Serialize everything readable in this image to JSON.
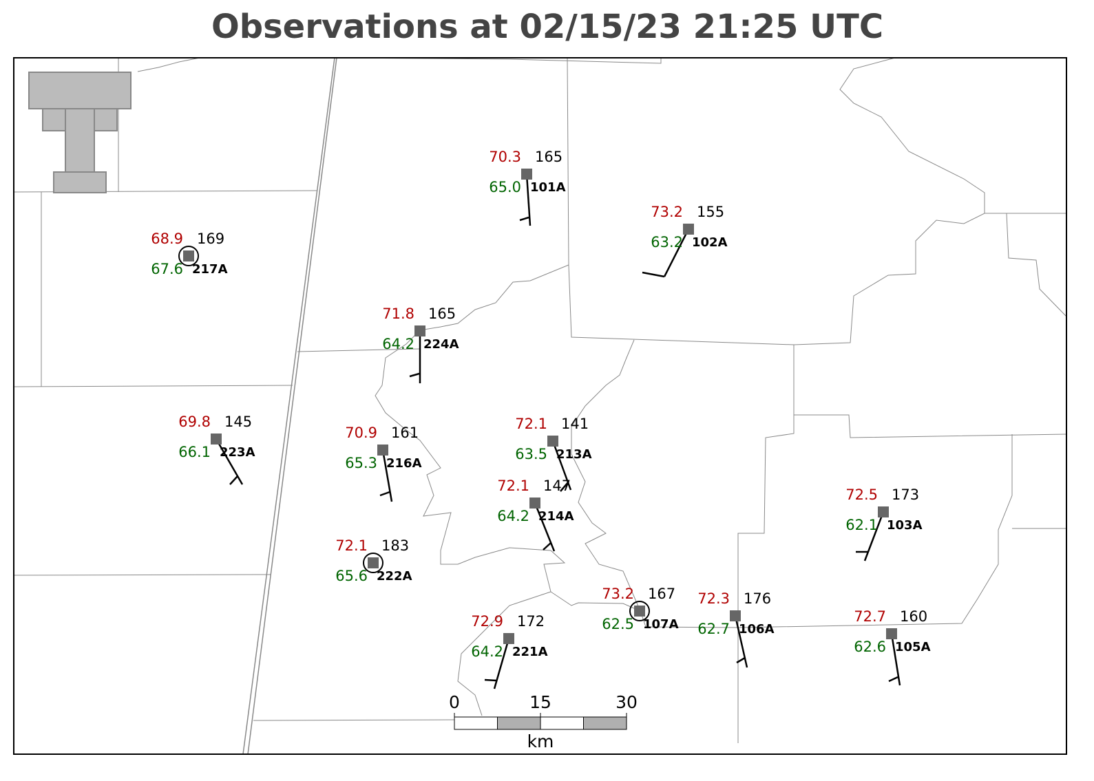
{
  "title": "Observations at 02/15/23 21:25 UTC",
  "stations": [
    {
      "id": "101A",
      "temperature": "70.3",
      "dewpoint": "65.0",
      "pressure": "165"
    },
    {
      "id": "102A",
      "temperature": "73.2",
      "dewpoint": "63.2",
      "pressure": "155"
    },
    {
      "id": "217A",
      "temperature": "68.9",
      "dewpoint": "67.6",
      "pressure": "169"
    },
    {
      "id": "224A",
      "temperature": "71.8",
      "dewpoint": "64.2",
      "pressure": "165"
    },
    {
      "id": "223A",
      "temperature": "69.8",
      "dewpoint": "66.1",
      "pressure": "145"
    },
    {
      "id": "216A",
      "temperature": "70.9",
      "dewpoint": "65.3",
      "pressure": "161"
    },
    {
      "id": "213A",
      "temperature": "72.1",
      "dewpoint": "63.5",
      "pressure": "141"
    },
    {
      "id": "214A",
      "temperature": "72.1",
      "dewpoint": "64.2",
      "pressure": "147"
    },
    {
      "id": "222A",
      "temperature": "72.1",
      "dewpoint": "65.6",
      "pressure": "183"
    },
    {
      "id": "221A",
      "temperature": "72.9",
      "dewpoint": "64.2",
      "pressure": "172"
    },
    {
      "id": "107A",
      "temperature": "73.2",
      "dewpoint": "62.5",
      "pressure": "167"
    },
    {
      "id": "106A",
      "temperature": "72.3",
      "dewpoint": "62.7",
      "pressure": "176"
    },
    {
      "id": "103A",
      "temperature": "72.5",
      "dewpoint": "62.1",
      "pressure": "173"
    },
    {
      "id": "105A",
      "temperature": "72.7",
      "dewpoint": "62.6",
      "pressure": "160"
    }
  ],
  "scale_bar": {
    "labels": [
      "0",
      "15",
      "30"
    ],
    "unit": "km"
  }
}
